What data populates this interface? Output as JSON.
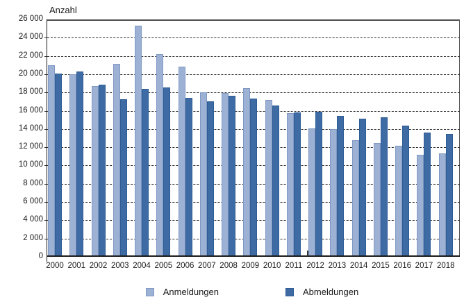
{
  "y_axis_title": "Anzahl",
  "chart_data": {
    "type": "bar",
    "title": "",
    "xlabel": "",
    "ylabel": "Anzahl",
    "grid": "horizontal-dashed",
    "legend_position": "bottom-center",
    "ylim": [
      0,
      26000
    ],
    "ytick_step": 2000,
    "ytick_labels": [
      "0",
      "2 000",
      "4 000",
      "6 000",
      "8 000",
      "10 000",
      "12 000",
      "14 000",
      "16 000",
      "18 000",
      "20 000",
      "22 000",
      "24 000",
      "26 000"
    ],
    "categories": [
      "2000",
      "2001",
      "2002",
      "2003",
      "2004",
      "2005",
      "2006",
      "2007",
      "2008",
      "2009",
      "2010",
      "2011",
      "2012",
      "2013",
      "2014",
      "2015",
      "2016",
      "2017",
      "2018"
    ],
    "series": [
      {
        "name": "Anmeldungen",
        "color": "#9DB1D5",
        "border_color": "#7F99C3",
        "values": [
          20950,
          20000,
          18700,
          21150,
          25300,
          22200,
          20800,
          18050,
          17950,
          18450,
          17200,
          15750,
          14050,
          14000,
          12800,
          12500,
          12200,
          11200,
          11300
        ]
      },
      {
        "name": "Abmeldungen",
        "color": "#3E6BA4",
        "border_color": "#2E5C95",
        "values": [
          20050,
          20300,
          18850,
          17250,
          18400,
          18550,
          17400,
          17000,
          17650,
          17300,
          16600,
          15850,
          15900,
          15400,
          15100,
          15250,
          14400,
          13600,
          13450
        ]
      }
    ]
  },
  "legend": {
    "items": [
      {
        "label": "Anmeldungen",
        "color": "#9DB1D5",
        "border_color": "#7F99C3"
      },
      {
        "label": "Abmeldungen",
        "color": "#3E6BA4",
        "border_color": "#2E5C95"
      }
    ]
  }
}
